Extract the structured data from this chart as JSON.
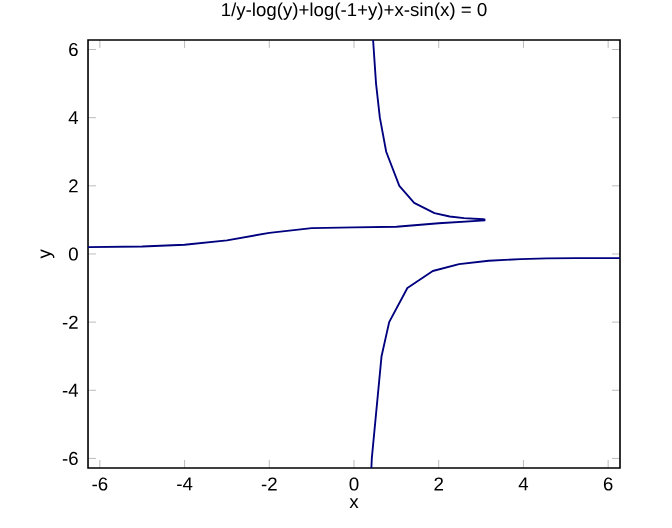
{
  "chart_data": {
    "type": "line",
    "title": "1/y-log(y)+log(-1+y)+x-sin(x) = 0",
    "xlabel": "x",
    "ylabel": "y",
    "xlim": [
      -6.28,
      6.28
    ],
    "ylim": [
      -6.28,
      6.28
    ],
    "xticks": [
      -6,
      -4,
      -2,
      0,
      2,
      4,
      6
    ],
    "yticks": [
      -6,
      -4,
      -2,
      0,
      2,
      4,
      6
    ],
    "line_style": "solid",
    "series": [
      {
        "color": "#00007f",
        "x": [
          -6.28,
          -5,
          -4,
          -3,
          -2,
          -1,
          0,
          1,
          2,
          3,
          3.1
        ],
        "values": [
          0.2,
          0.22,
          0.27,
          0.4,
          0.62,
          0.76,
          0.78,
          0.8,
          0.9,
          0.98,
          0.99
        ]
      },
      {
        "color": "#00007f",
        "x": [
          0.45,
          0.52,
          0.61,
          0.76,
          1.07,
          1.42,
          1.9,
          2.26,
          2.6,
          3.05,
          3.1
        ],
        "values": [
          6.28,
          5,
          4,
          3,
          2,
          1.5,
          1.2,
          1.1,
          1.05,
          1.02,
          1.01
        ]
      },
      {
        "color": "#00007f",
        "x": [
          0.41,
          0.42,
          0.65,
          0.83,
          1.26,
          1.86,
          2.48,
          3.18,
          3.93,
          4.55,
          5.24,
          5.6,
          6.28
        ],
        "values": [
          -6.28,
          -6,
          -3,
          -2,
          -1,
          -0.5,
          -0.3,
          -0.2,
          -0.15,
          -0.13,
          -0.12,
          -0.12,
          -0.12
        ]
      }
    ]
  }
}
